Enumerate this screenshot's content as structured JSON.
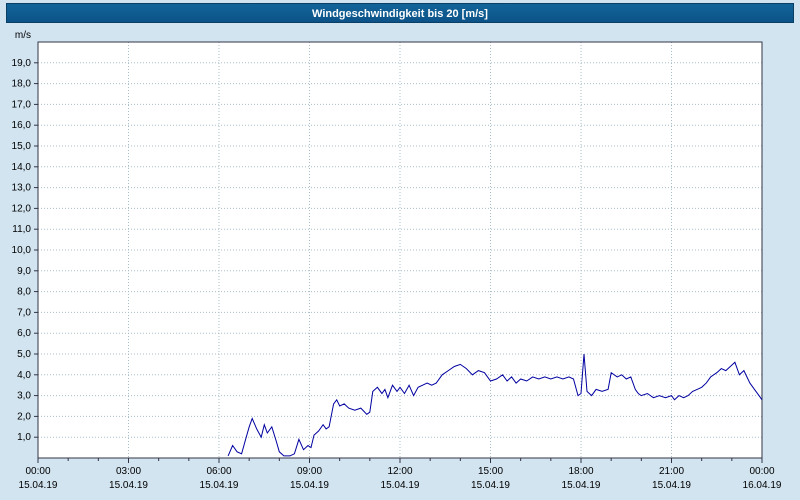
{
  "title": "Windgeschwindigkeit bis 20 [m/s]",
  "colors": {
    "background": "#d2e4f0",
    "titlebar": "#0c5288",
    "title_text": "#ffffff",
    "plot_background": "#ffffff",
    "grid": "#a8bfc9",
    "axis": "#333344",
    "line": "#0000a0"
  },
  "y_axis": {
    "unit_label": "m/s",
    "min": 0,
    "max": 20,
    "step": 1,
    "tick_labels": [
      "19,0",
      "18,0",
      "17,0",
      "16,0",
      "15,0",
      "14,0",
      "13,0",
      "12,0",
      "11,0",
      "10,0",
      "9,0",
      "8,0",
      "7,0",
      "6,0",
      "5,0",
      "4,0",
      "3,0",
      "2,0",
      "1,0"
    ],
    "tick_values": [
      19,
      18,
      17,
      16,
      15,
      14,
      13,
      12,
      11,
      10,
      9,
      8,
      7,
      6,
      5,
      4,
      3,
      2,
      1
    ]
  },
  "x_axis": {
    "tick_hours": [
      0,
      3,
      6,
      9,
      12,
      15,
      18,
      21,
      24
    ],
    "tick_times": [
      "00:00",
      "03:00",
      "06:00",
      "09:00",
      "12:00",
      "15:00",
      "18:00",
      "21:00",
      "00:00"
    ],
    "tick_dates": [
      "15.04.19",
      "15.04.19",
      "15.04.19",
      "15.04.19",
      "15.04.19",
      "15.04.19",
      "15.04.19",
      "15.04.19",
      "16.04.19"
    ],
    "minor_tick_every_hours": 1
  },
  "chart_data": {
    "type": "line",
    "title": "Windgeschwindigkeit bis 20 [m/s]",
    "xlabel": "",
    "ylabel": "m/s",
    "ylim": [
      0,
      20
    ],
    "xlim_hours": [
      0,
      24
    ],
    "grid": true,
    "legend": false,
    "series": [
      {
        "name": "Windgeschwindigkeit",
        "color": "#0000a0",
        "x_hours": [
          6.3,
          6.45,
          6.6,
          6.75,
          6.9,
          7.0,
          7.1,
          7.25,
          7.4,
          7.5,
          7.6,
          7.75,
          7.9,
          8.0,
          8.15,
          8.35,
          8.5,
          8.65,
          8.8,
          8.95,
          9.05,
          9.15,
          9.3,
          9.45,
          9.55,
          9.65,
          9.8,
          9.9,
          10.0,
          10.15,
          10.3,
          10.5,
          10.7,
          10.9,
          11.0,
          11.1,
          11.25,
          11.4,
          11.5,
          11.6,
          11.75,
          11.9,
          12.0,
          12.15,
          12.3,
          12.45,
          12.6,
          12.75,
          12.9,
          13.05,
          13.2,
          13.4,
          13.6,
          13.8,
          14.0,
          14.2,
          14.4,
          14.6,
          14.8,
          15.0,
          15.2,
          15.4,
          15.55,
          15.7,
          15.85,
          16.0,
          16.2,
          16.4,
          16.6,
          16.8,
          17.0,
          17.2,
          17.4,
          17.6,
          17.75,
          17.9,
          18.0,
          18.1,
          18.2,
          18.35,
          18.5,
          18.7,
          18.9,
          19.0,
          19.2,
          19.35,
          19.5,
          19.65,
          19.8,
          19.9,
          20.0,
          20.2,
          20.4,
          20.6,
          20.8,
          21.0,
          21.1,
          21.25,
          21.4,
          21.55,
          21.7,
          21.85,
          22.0,
          22.15,
          22.3,
          22.5,
          22.65,
          22.8,
          22.95,
          23.1,
          23.25,
          23.4,
          23.5,
          23.6,
          23.75,
          23.9,
          24.0
        ],
        "values": [
          0.1,
          0.6,
          0.3,
          0.2,
          1.0,
          1.5,
          1.9,
          1.4,
          1.0,
          1.6,
          1.2,
          1.5,
          0.8,
          0.3,
          0.1,
          0.1,
          0.2,
          0.9,
          0.4,
          0.6,
          0.5,
          1.1,
          1.3,
          1.6,
          1.4,
          1.5,
          2.6,
          2.8,
          2.5,
          2.6,
          2.4,
          2.3,
          2.4,
          2.1,
          2.2,
          3.2,
          3.4,
          3.1,
          3.3,
          2.9,
          3.5,
          3.2,
          3.4,
          3.1,
          3.5,
          3.0,
          3.4,
          3.5,
          3.6,
          3.5,
          3.6,
          4.0,
          4.2,
          4.4,
          4.5,
          4.3,
          4.0,
          4.2,
          4.1,
          3.7,
          3.8,
          4.0,
          3.7,
          3.9,
          3.6,
          3.8,
          3.7,
          3.9,
          3.8,
          3.9,
          3.8,
          3.9,
          3.8,
          3.9,
          3.8,
          3.0,
          3.1,
          5.0,
          3.2,
          3.0,
          3.3,
          3.2,
          3.3,
          4.1,
          3.9,
          4.0,
          3.8,
          3.9,
          3.3,
          3.1,
          3.0,
          3.1,
          2.9,
          3.0,
          2.9,
          3.0,
          2.8,
          3.0,
          2.9,
          3.0,
          3.2,
          3.3,
          3.4,
          3.6,
          3.9,
          4.1,
          4.3,
          4.2,
          4.4,
          4.6,
          4.0,
          4.2,
          3.9,
          3.6,
          3.3,
          3.0,
          2.8
        ]
      }
    ]
  }
}
